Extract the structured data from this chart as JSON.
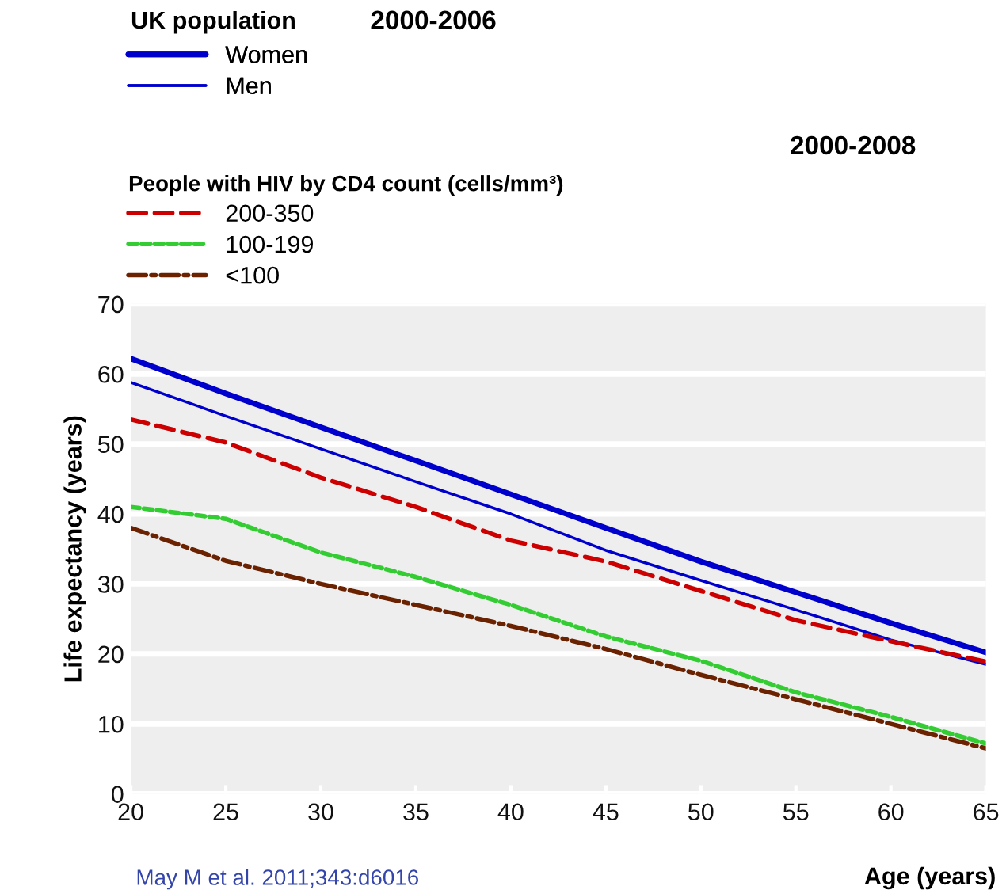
{
  "chart_data": {
    "type": "line",
    "title": "UK population",
    "subtitle": "2000-2006",
    "legend_title": "People with HIV by CD4 count (cells/mm³)",
    "ylabel": "Life expectancy (years)",
    "xlabel": "Age (years)",
    "annotations": [
      "2000-2008",
      "May M et al. 2011;343:d6016"
    ],
    "x": [
      20,
      25,
      30,
      35,
      40,
      45,
      50,
      55,
      60,
      65
    ],
    "series": [
      {
        "name": "Women",
        "color": "#0000cc",
        "line_style": "solid",
        "values": [
          62.2,
          57.2,
          52.4,
          47.6,
          42.8,
          38.0,
          33.2,
          28.8,
          24.4,
          20.2
        ]
      },
      {
        "name": "Men",
        "color": "#0000cc",
        "line_style": "solid",
        "values": [
          58.8,
          54.0,
          49.3,
          44.6,
          40.0,
          34.8,
          30.5,
          26.3,
          22.0,
          18.5
        ]
      },
      {
        "name": "200-350",
        "color": "#cc0000",
        "line_style": "dashed",
        "values": [
          53.5,
          50.2,
          45.2,
          41.0,
          36.2,
          33.2,
          29.0,
          24.8,
          21.8,
          18.9
        ]
      },
      {
        "name": "100-199",
        "color": "#33cc33",
        "line_style": "dotted",
        "values": [
          41.0,
          39.3,
          34.5,
          31.0,
          27.0,
          22.5,
          19.0,
          14.5,
          11.0,
          7.2
        ]
      },
      {
        "name": "<100",
        "color": "#6b2200",
        "line_style": "dashdot",
        "values": [
          38.0,
          33.3,
          30.0,
          27.0,
          24.0,
          20.7,
          17.0,
          13.5,
          10.0,
          6.5
        ]
      }
    ],
    "xlim": [
      20,
      65
    ],
    "xticks": [
      20,
      25,
      30,
      35,
      40,
      45,
      50,
      55,
      60,
      65
    ],
    "ylim": [
      0,
      70
    ],
    "yticks": [
      0,
      10,
      20,
      30,
      40,
      50,
      60,
      70
    ],
    "grid": "y",
    "legend": "top left",
    "marker": "none"
  }
}
